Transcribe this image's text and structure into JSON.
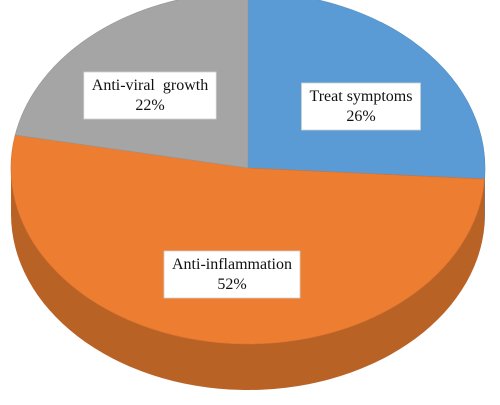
{
  "chart_data": {
    "type": "pie",
    "style": "3d",
    "slices": [
      {
        "label": "Treat symptoms",
        "value": 26,
        "value_label": "26%",
        "color": "#5b9bd5"
      },
      {
        "label": "Anti-inflammation",
        "value": 52,
        "value_label": "52%",
        "color": "#ed7d31"
      },
      {
        "label": "Anti-viral  growth",
        "value": 22,
        "value_label": "22%",
        "color": "#a5a5a5"
      }
    ]
  }
}
